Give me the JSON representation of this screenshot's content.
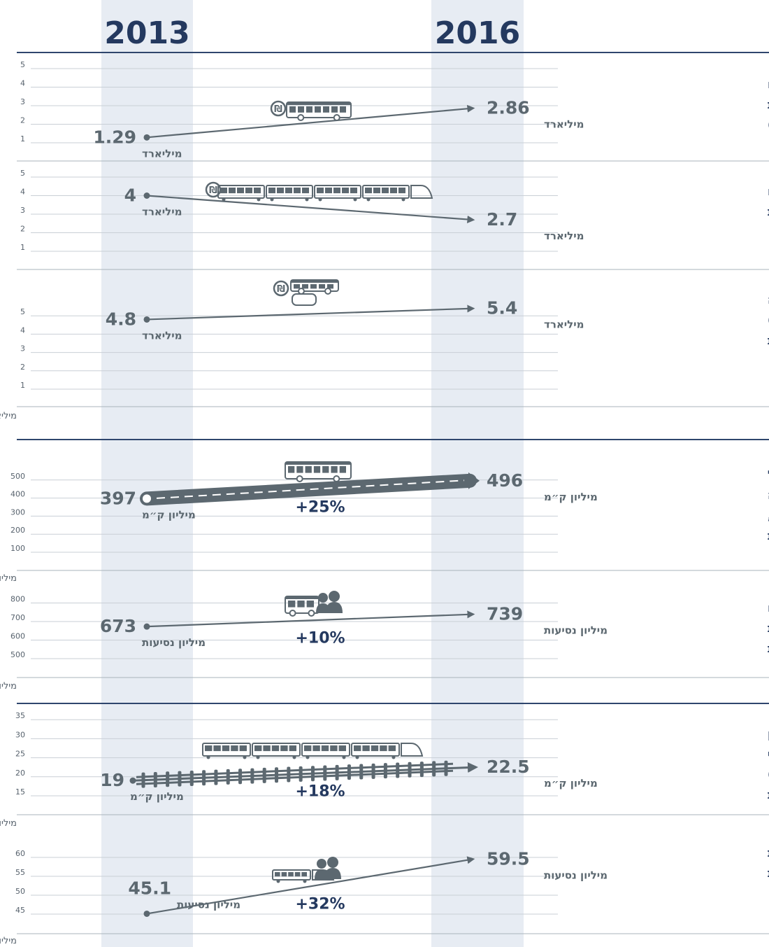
{
  "chart_data": {
    "type": "line",
    "years": [
      "2013",
      "2016"
    ],
    "panels": [
      {
        "title": [
          "תקציב לפיתוח",
          "תחבורה ציבורית",
          "(למעט רכבות כבדות)"
        ],
        "yticks": [
          1,
          2,
          3,
          4,
          5
        ],
        "ylim": [
          0.2,
          5.5
        ],
        "values": [
          1.29,
          2.86
        ],
        "value_labels": [
          "1.29",
          "2.86"
        ],
        "point_unit": "מיליארד",
        "icon": "bus-shekel-icon"
      },
      {
        "title": [
          "תקציב לפיתוח",
          "רכבות כבדות"
        ],
        "yticks": [
          1,
          2,
          3,
          4,
          5
        ],
        "ylim": [
          0.2,
          5.5
        ],
        "values": [
          4,
          2.7
        ],
        "value_labels": [
          "4",
          "2.7"
        ],
        "point_unit": "מיליארד",
        "icon": "train-shekel-icon"
      },
      {
        "title": [
          "תקציב תמיכה",
          "(סבסוד)",
          "בתחבורה ציבורית"
        ],
        "yticks": [
          1,
          2,
          3,
          4,
          5
        ],
        "ylim": [
          0.2,
          5.5
        ],
        "values": [
          4.8,
          5.4
        ],
        "value_labels": [
          "4.8",
          "5.4"
        ],
        "point_unit": "מיליארד",
        "icon": "bus-tram-shekel-icon",
        "axis_unit": "מיליארד ₪"
      },
      {
        "title": [
          "היקף השירות הניתן (כלל",
          "הנסועה של אמצעי התחבורה",
          "באותה שנה) באוטובוסים,",
          "רכבת קלה ומטרונית"
        ],
        "yticks": [
          100,
          200,
          300,
          400,
          500
        ],
        "ylim": [
          50,
          550
        ],
        "values": [
          397,
          496
        ],
        "value_labels": [
          "397",
          "496"
        ],
        "point_unit": "מיליון ק״מ",
        "change": "+25%",
        "icon": "bus-icon",
        "axis_unit": "מיליון ק״מ"
      },
      {
        "title": [
          "מספר נסיעות נוסעים",
          "באוטובוסים, רכבת",
          "קלה ומטרונית"
        ],
        "yticks": [
          500,
          600,
          700,
          800
        ],
        "ylim": [
          450,
          850
        ],
        "values": [
          673,
          739
        ],
        "value_labels": [
          "673",
          "739"
        ],
        "point_unit": "מיליון נסיעות",
        "change": "+10%",
        "icon": "bus-passengers-icon",
        "axis_unit": "מיליון נסיעות"
      },
      {
        "title": [
          "היקף השירות הניתן",
          "(כלל הנסועה של אמצעי",
          "התחבורה באותה שנה)",
          "ברכבת"
        ],
        "yticks": [
          15,
          20,
          25,
          30,
          35
        ],
        "ylim": [
          12.5,
          37.5
        ],
        "values": [
          19,
          22.5
        ],
        "value_labels": [
          "19",
          "22.5"
        ],
        "point_unit": "מיליון ק״מ",
        "change": "+18%",
        "icon": "train-track-icon",
        "axis_unit": "מיליון ק״מ"
      },
      {
        "title": [
          "מספר נסיעות",
          "נוסעים ברכבת"
        ],
        "yticks": [
          45,
          50,
          55,
          60
        ],
        "ylim": [
          42.5,
          62.5
        ],
        "values": [
          45.1,
          59.5
        ],
        "value_labels": [
          "45.1",
          "59.5"
        ],
        "point_unit": "מיליון נסיעות",
        "change": "+32%",
        "icon": "train-passengers-icon",
        "axis_unit": "מיליון נסיעות"
      }
    ]
  },
  "colors": {
    "title": "#24395f",
    "value": "#5c6870",
    "tick": "#57626d",
    "band": "#e7ecf3",
    "rule_major": "#2f466d",
    "rule_minor": "#aab3bb",
    "grid": "#c9cfd6",
    "line": "#5c6870"
  }
}
